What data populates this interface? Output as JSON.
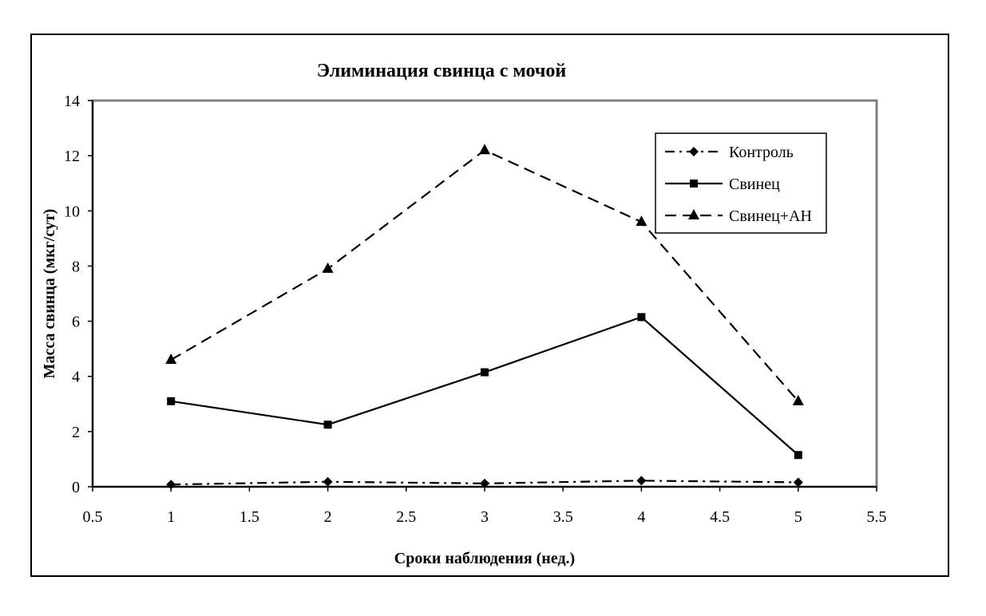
{
  "chart_data": {
    "type": "line",
    "title": "Элиминация свинца с мочой",
    "xlabel": "Сроки наблюдения (нед.)",
    "ylabel": "Масса свинца (мкг/сут)",
    "xlim": [
      0.5,
      5.5
    ],
    "ylim": [
      0,
      14
    ],
    "x_ticks": [
      "0.5",
      "1",
      "1.5",
      "2",
      "2.5",
      "3",
      "3.5",
      "4",
      "4.5",
      "5",
      "5.5"
    ],
    "y_ticks": [
      "0",
      "2",
      "4",
      "6",
      "8",
      "10",
      "12",
      "14"
    ],
    "grid": false,
    "legend_position": "top-right",
    "series": [
      {
        "name": "Контроль",
        "marker": "diamond",
        "line": "dash-dot",
        "x": [
          1,
          2,
          3,
          4,
          5
        ],
        "values": [
          0.08,
          0.18,
          0.12,
          0.22,
          0.16
        ]
      },
      {
        "name": "Свинец",
        "marker": "square",
        "line": "solid",
        "x": [
          1,
          2,
          3,
          4,
          5
        ],
        "values": [
          3.1,
          2.25,
          4.15,
          6.15,
          1.15
        ]
      },
      {
        "name": "Свинец+АН",
        "marker": "triangle",
        "line": "dashed",
        "x": [
          1,
          2,
          3,
          4,
          5
        ],
        "values": [
          4.6,
          7.9,
          12.2,
          9.6,
          3.1
        ]
      }
    ],
    "colors": {
      "line": "#000000",
      "plot_border": "#808080",
      "background": "#ffffff"
    }
  }
}
